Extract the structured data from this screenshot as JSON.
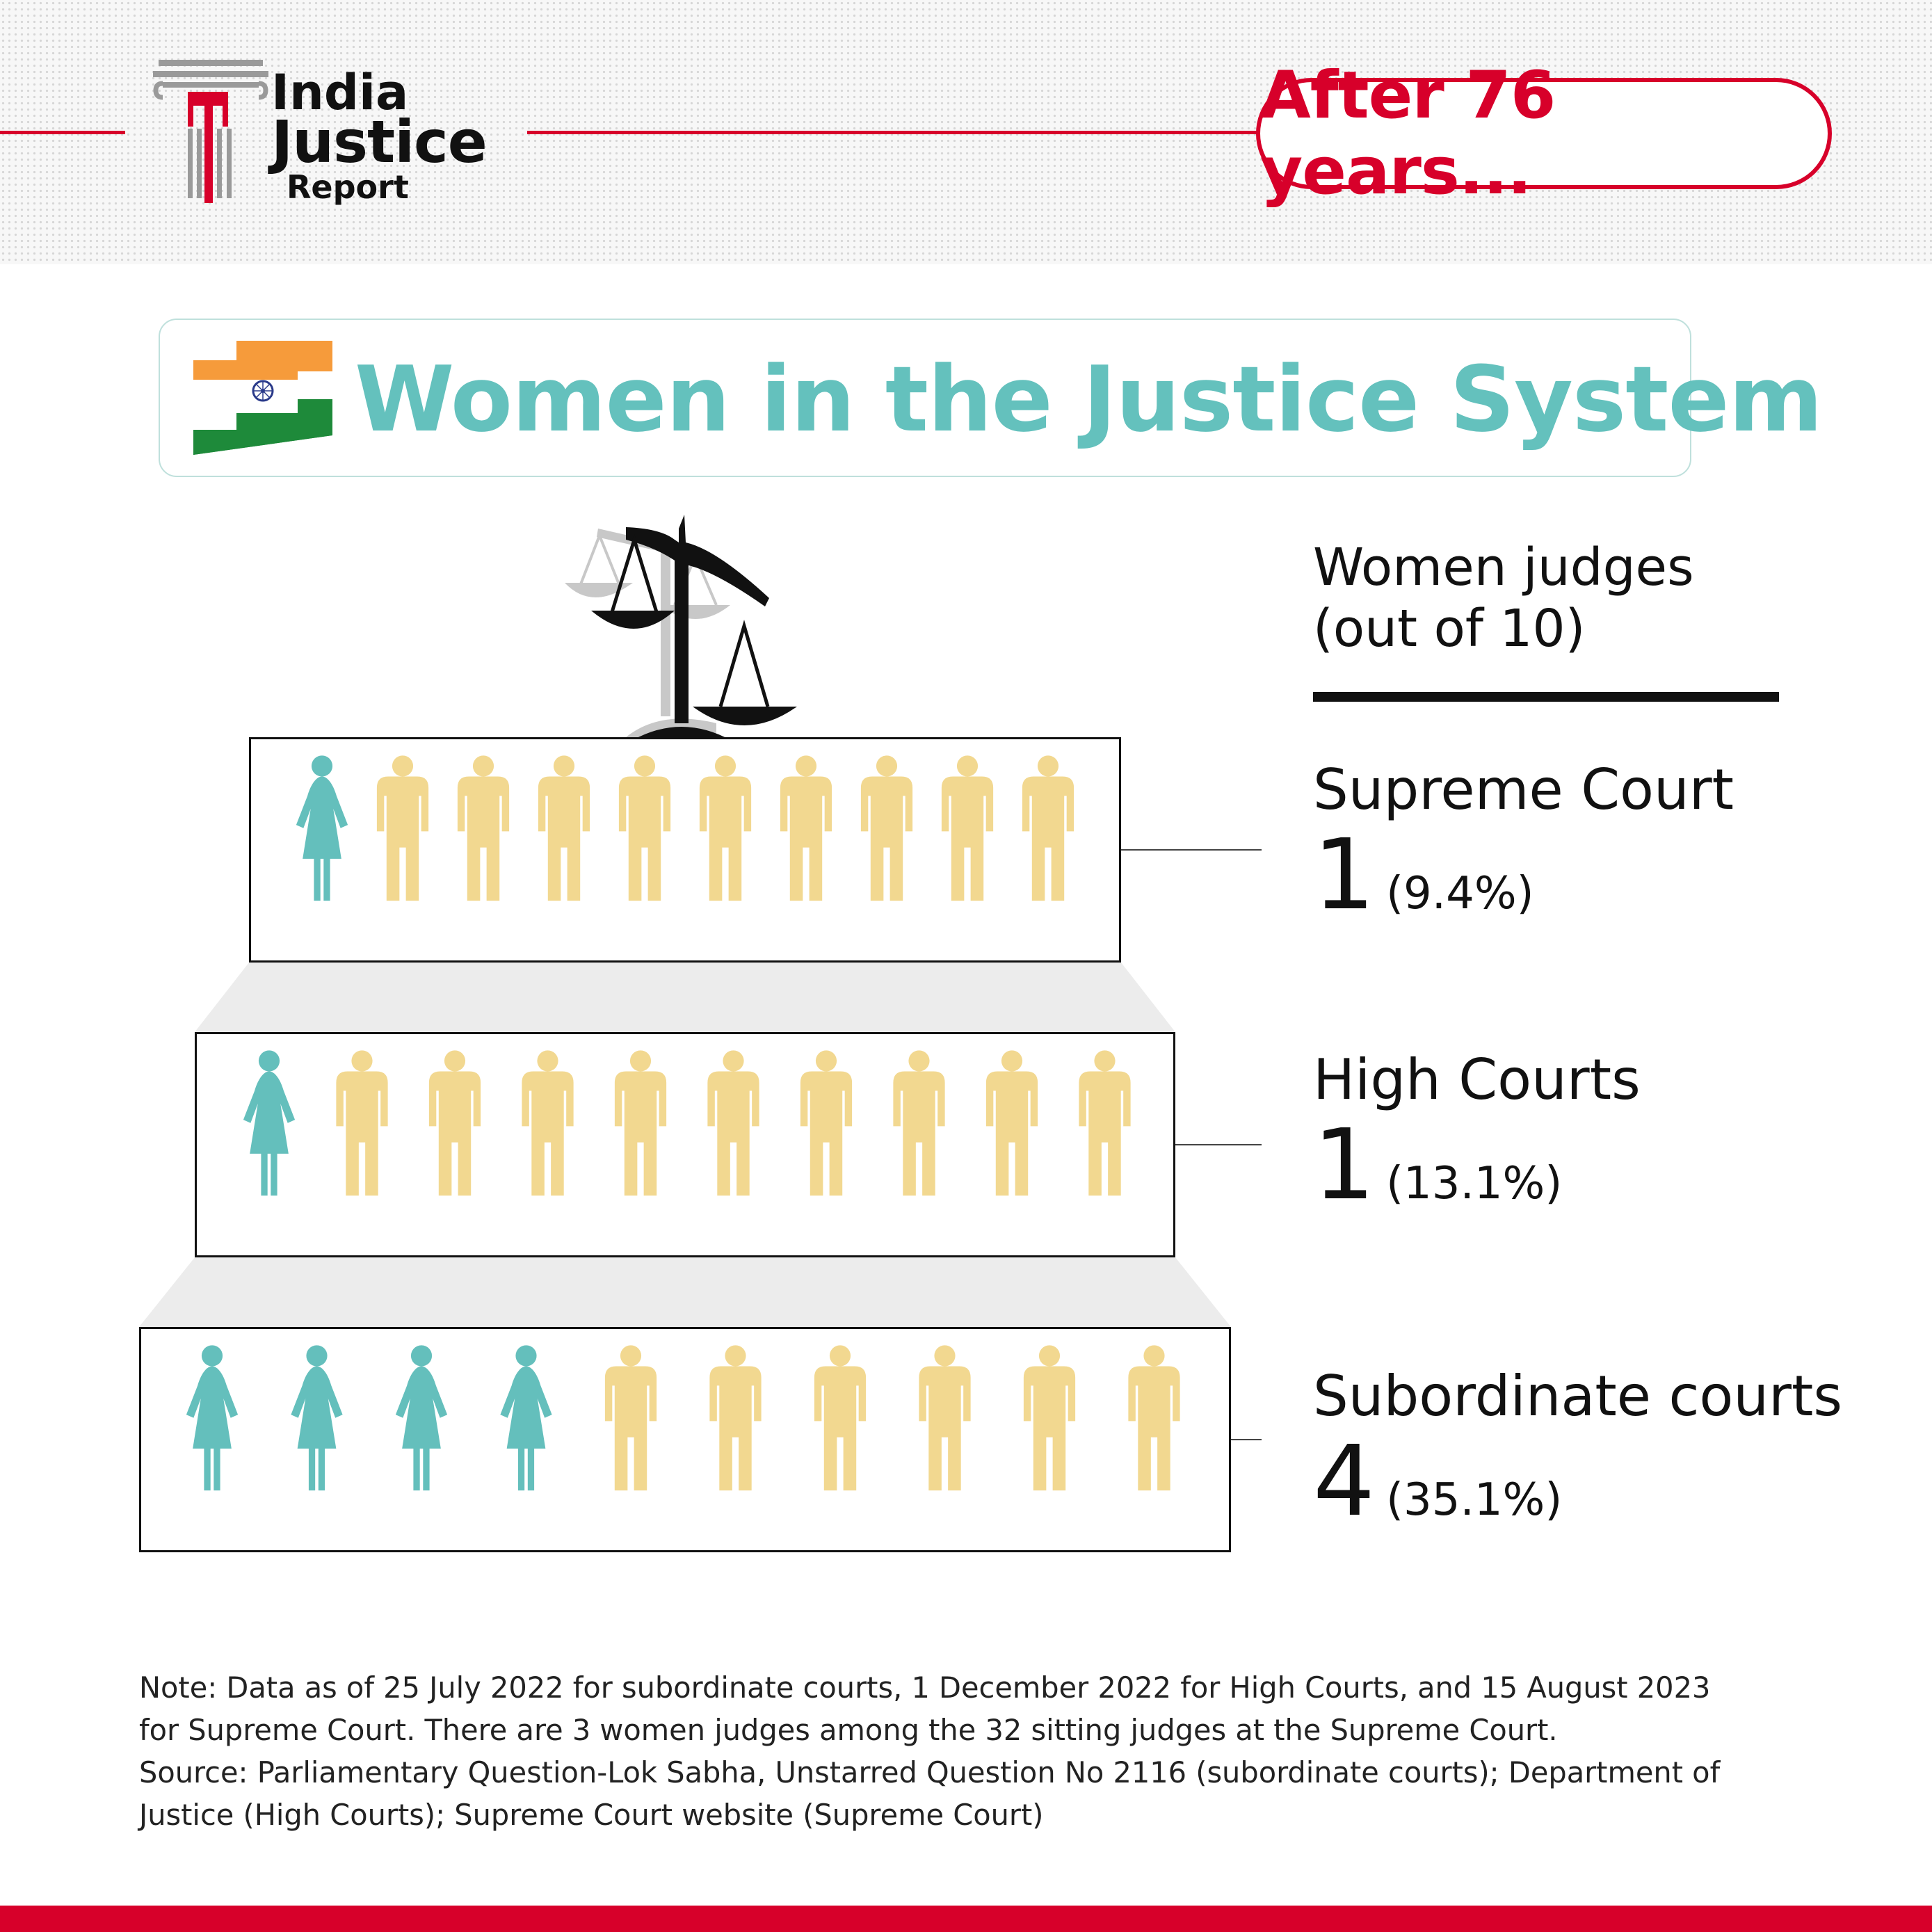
{
  "header": {
    "logo_line1": "India",
    "logo_line2": "Justice",
    "logo_line3": "Report",
    "tagline": "After 76 years..."
  },
  "title": "Women in the Justice System",
  "legend": {
    "line1": "Women judges",
    "line2": "(out of 10)"
  },
  "colors": {
    "women": "#64bfbc",
    "men": "#f2d890",
    "accent_red": "#d7002a",
    "title_teal": "#64c1bd"
  },
  "chart_data": {
    "type": "pictogram",
    "unit": "judges out of 10",
    "total_per_row": 10,
    "categories": [
      "Supreme Court",
      "High Courts",
      "Subordinate courts"
    ],
    "women_out_of_10": [
      1,
      1,
      4
    ],
    "percent_labels": [
      "(9.4%)",
      "(13.1%)",
      "(35.1%)"
    ],
    "percent_values": [
      9.4,
      13.1,
      35.1
    ]
  },
  "courts": [
    {
      "name": "Supreme Court",
      "count": "1",
      "pct": "(9.4%)"
    },
    {
      "name": "High Courts",
      "count": "1",
      "pct": "(13.1%)"
    },
    {
      "name": "Subordinate courts",
      "count": "4",
      "pct": "(35.1%)"
    }
  ],
  "note": {
    "line1": "Note: Data as of 25 July 2022 for subordinate courts, 1 December 2022 for High Courts, and 15 August 2023",
    "line2": "for Supreme Court. There are 3 women judges among the 32 sitting judges at the Supreme Court.",
    "line3": "Source: Parliamentary Question-Lok Sabha, Unstarred Question No 2116 (subordinate courts); Department of",
    "line4": "Justice (High Courts); Supreme Court website (Supreme Court)"
  }
}
